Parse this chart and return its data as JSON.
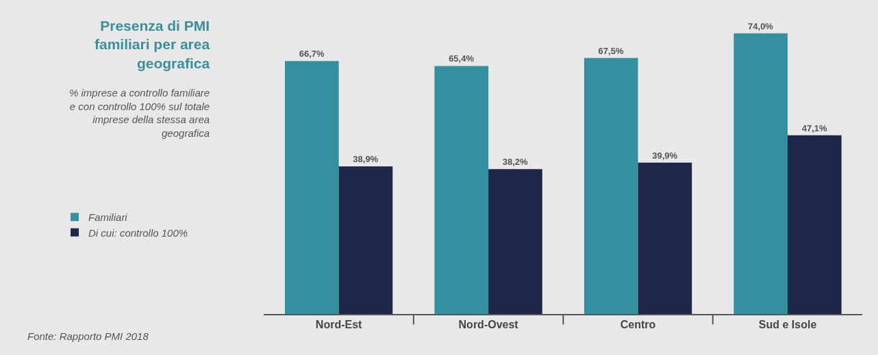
{
  "chart_data": {
    "type": "bar",
    "title": "Presenza di PMI familiari per area geografica",
    "subtitle": "% imprese a controllo familiare e con controllo 100% sul totale imprese della stessa area geografica",
    "annotations": [
      "Fonte: Rapporto PMI 2018"
    ],
    "categories": [
      "Nord-Est",
      "Nord-Ovest",
      "Centro",
      "Sud e Isole"
    ],
    "series": [
      {
        "name": "Familiari",
        "color": "#33919f",
        "values": [
          66.7,
          65.4,
          67.5,
          74.0
        ],
        "value_labels": [
          "66,7%",
          "65,4%",
          "67,5%",
          "74,0%"
        ]
      },
      {
        "name": "Di cui: controllo 100%",
        "color": "#1f2749",
        "values": [
          38.9,
          38.2,
          39.9,
          47.1
        ],
        "value_labels": [
          "38,9%",
          "38,2%",
          "39,9%",
          "47,1%"
        ]
      }
    ],
    "legend": "left"
  }
}
